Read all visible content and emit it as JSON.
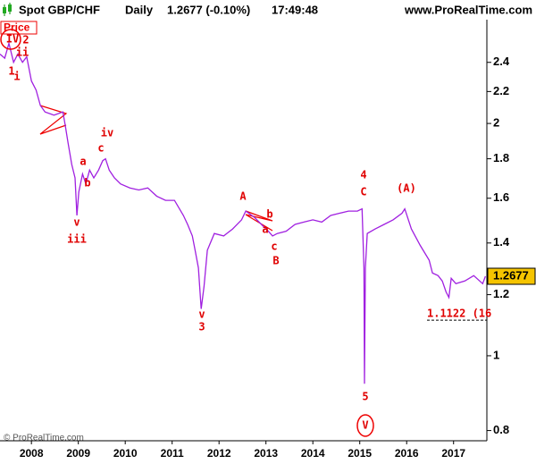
{
  "header": {
    "instrument": "Spot GBP/CHF",
    "period": "Daily",
    "quote": "1.2677 (-0.10%)",
    "time": "17:49:48",
    "site": "www.ProRealTime.com",
    "panel": "Price",
    "footer": "© ProRealTime.com"
  },
  "chart_data": {
    "type": "line",
    "color": "#a020e0",
    "log_scale": true,
    "xlim": [
      2007.33,
      2017.71
    ],
    "xticks": [
      2008,
      2009,
      2010,
      2011,
      2012,
      2013,
      2014,
      2015,
      2016,
      2017
    ],
    "ylim": [
      0.776,
      2.726
    ],
    "yticks": [
      0.8,
      1,
      1.2,
      1.4,
      1.6,
      1.8,
      2,
      2.2,
      2.4
    ],
    "x": [
      2007.33,
      2007.43,
      2007.52,
      2007.62,
      2007.71,
      2007.81,
      2007.9,
      2008.0,
      2008.1,
      2008.19,
      2008.29,
      2008.48,
      2008.67,
      2008.72,
      2008.78,
      2008.86,
      2008.93,
      2008.97,
      2009.01,
      2009.09,
      2009.16,
      2009.24,
      2009.33,
      2009.43,
      2009.52,
      2009.58,
      2009.66,
      2009.77,
      2009.9,
      2010.1,
      2010.29,
      2010.48,
      2010.67,
      2010.86,
      2011.05,
      2011.24,
      2011.33,
      2011.43,
      2011.49,
      2011.56,
      2011.62,
      2011.68,
      2011.75,
      2011.9,
      2012.1,
      2012.29,
      2012.48,
      2012.57,
      2012.76,
      2012.95,
      2013.05,
      2013.14,
      2013.24,
      2013.43,
      2013.62,
      2013.81,
      2014.0,
      2014.19,
      2014.38,
      2014.57,
      2014.76,
      2014.95,
      2015.05,
      2015.09,
      2015.1,
      2015.12,
      2015.16,
      2015.33,
      2015.52,
      2015.71,
      2015.9,
      2015.96,
      2016.1,
      2016.29,
      2016.48,
      2016.55,
      2016.67,
      2016.76,
      2016.84,
      2016.9,
      2016.95,
      2017.05,
      2017.24,
      2017.43,
      2017.62,
      2017.68
    ],
    "values": [
      2.46,
      2.43,
      2.54,
      2.4,
      2.46,
      2.4,
      2.44,
      2.27,
      2.21,
      2.11,
      2.07,
      2.05,
      2.07,
      1.99,
      1.89,
      1.77,
      1.7,
      1.52,
      1.63,
      1.72,
      1.67,
      1.74,
      1.7,
      1.74,
      1.79,
      1.8,
      1.74,
      1.7,
      1.67,
      1.65,
      1.64,
      1.65,
      1.61,
      1.59,
      1.59,
      1.52,
      1.48,
      1.43,
      1.37,
      1.3,
      1.15,
      1.23,
      1.37,
      1.44,
      1.43,
      1.46,
      1.5,
      1.54,
      1.51,
      1.47,
      1.45,
      1.43,
      1.44,
      1.45,
      1.48,
      1.49,
      1.5,
      1.49,
      1.52,
      1.53,
      1.54,
      1.54,
      1.55,
      1.3,
      0.92,
      1.3,
      1.44,
      1.46,
      1.48,
      1.5,
      1.53,
      1.55,
      1.46,
      1.39,
      1.33,
      1.28,
      1.27,
      1.25,
      1.21,
      1.19,
      1.26,
      1.24,
      1.25,
      1.27,
      1.24,
      1.2677
    ],
    "last_price": 1.2677,
    "support_level": {
      "value": 1.1122,
      "label": "1.1122 (16"
    },
    "annotations": [
      "IV",
      "2",
      "ii",
      "1",
      "i",
      "a",
      "b",
      "v",
      "iii",
      "c",
      "iv",
      "v",
      "3",
      "A",
      "b",
      "a",
      "c",
      "B",
      "4",
      "C",
      "(A)",
      "5",
      "V"
    ]
  }
}
